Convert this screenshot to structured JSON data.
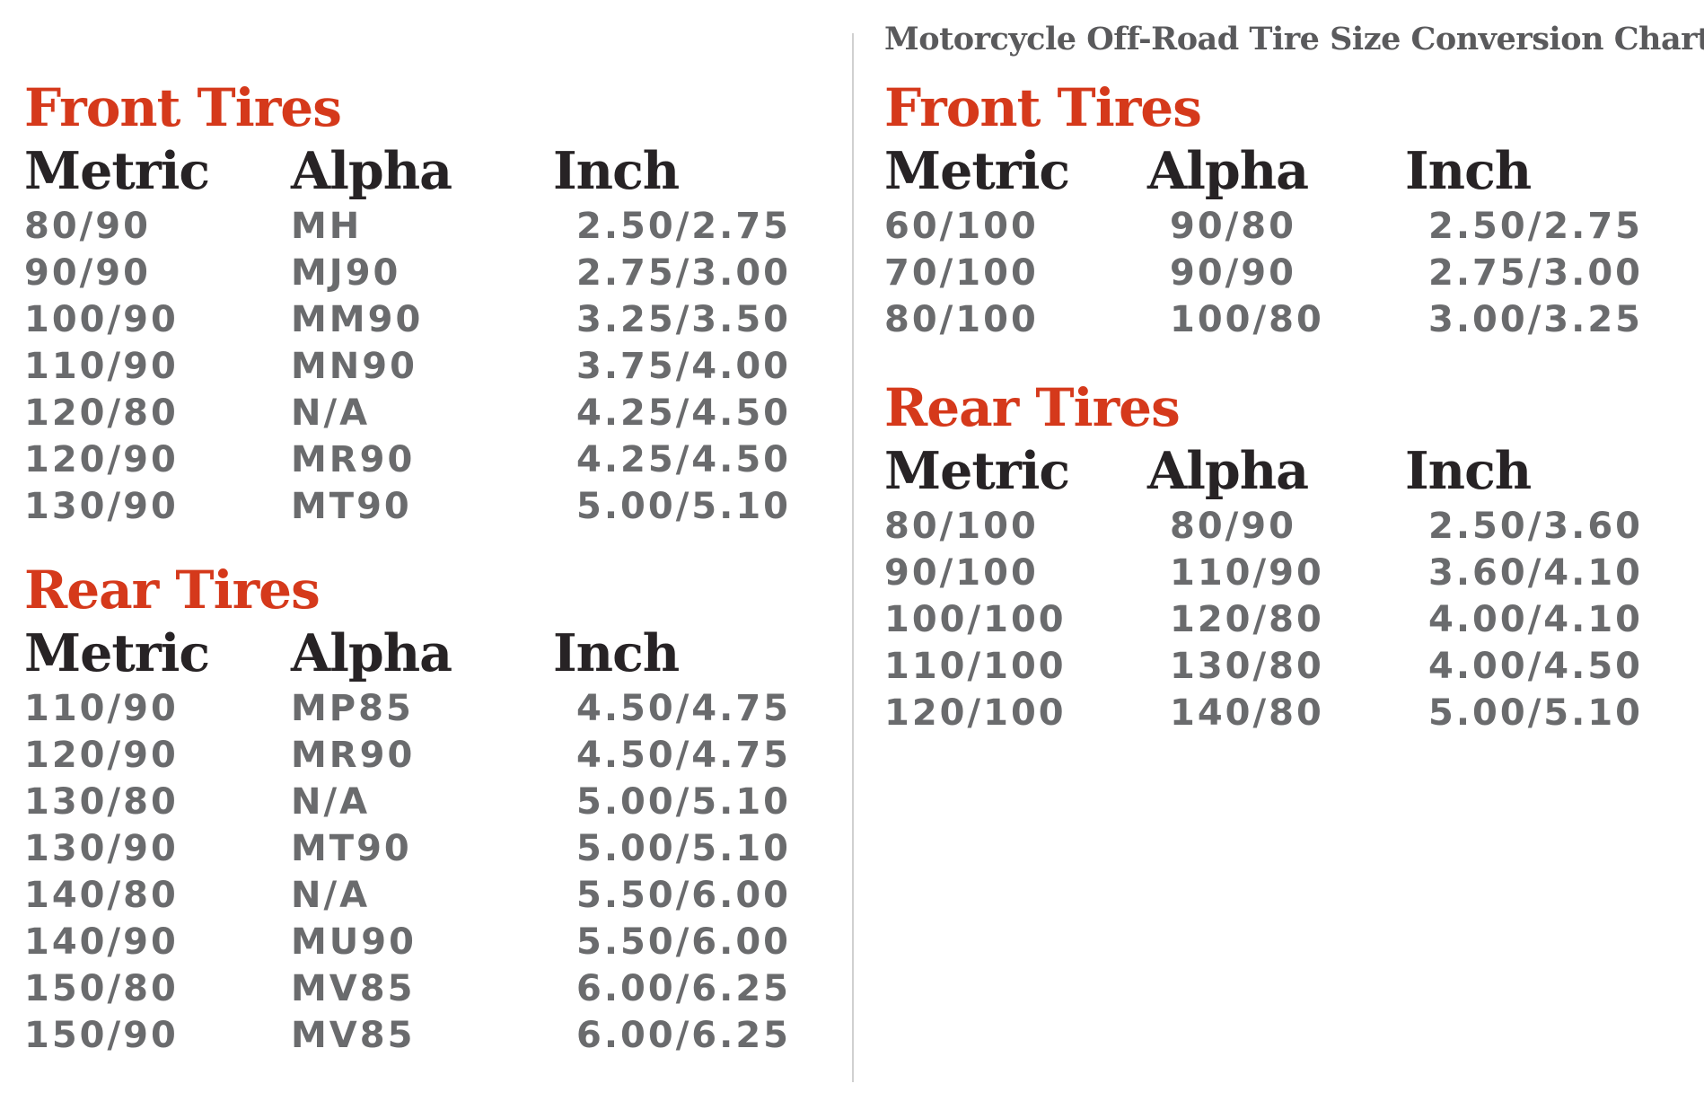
{
  "colors": {
    "heading_red": "#d5391b",
    "header_text": "#272325",
    "data_text": "#6a6b6d",
    "title_text": "#5a5a5c",
    "divider": "#d0d0d0",
    "background": "#ffffff"
  },
  "chart_data": {
    "type": "table",
    "right_panel_title": "Motorcycle Off-Road Tire Size Conversion Chart",
    "tables": [
      {
        "panel": "left",
        "heading": "Front Tires",
        "columns": [
          "Metric",
          "Alpha",
          "Inch"
        ],
        "rows": [
          [
            "80/90",
            "MH",
            "2.50/2.75"
          ],
          [
            "90/90",
            "MJ90",
            "2.75/3.00"
          ],
          [
            "100/90",
            "MM90",
            "3.25/3.50"
          ],
          [
            "110/90",
            "MN90",
            "3.75/4.00"
          ],
          [
            "120/80",
            "N/A",
            "4.25/4.50"
          ],
          [
            "120/90",
            "MR90",
            "4.25/4.50"
          ],
          [
            "130/90",
            "MT90",
            "5.00/5.10"
          ]
        ]
      },
      {
        "panel": "left",
        "heading": "Rear Tires",
        "columns": [
          "Metric",
          "Alpha",
          "Inch"
        ],
        "rows": [
          [
            "110/90",
            "MP85",
            "4.50/4.75"
          ],
          [
            "120/90",
            "MR90",
            "4.50/4.75"
          ],
          [
            "130/80",
            "N/A",
            "5.00/5.10"
          ],
          [
            "130/90",
            "MT90",
            "5.00/5.10"
          ],
          [
            "140/80",
            "N/A",
            "5.50/6.00"
          ],
          [
            "140/90",
            "MU90",
            "5.50/6.00"
          ],
          [
            "150/80",
            "MV85",
            "6.00/6.25"
          ],
          [
            "150/90",
            "MV85",
            "6.00/6.25"
          ]
        ]
      },
      {
        "panel": "right",
        "heading": "Front Tires",
        "columns": [
          "Metric",
          "Alpha",
          "Inch"
        ],
        "rows": [
          [
            "60/100",
            "90/80",
            "2.50/2.75"
          ],
          [
            "70/100",
            "90/90",
            "2.75/3.00"
          ],
          [
            "80/100",
            "100/80",
            "3.00/3.25"
          ]
        ]
      },
      {
        "panel": "right",
        "heading": "Rear Tires",
        "columns": [
          "Metric",
          "Alpha",
          "Inch"
        ],
        "rows": [
          [
            "80/100",
            "80/90",
            "2.50/3.60"
          ],
          [
            "90/100",
            "110/90",
            "3.60/4.10"
          ],
          [
            "100/100",
            "120/80",
            "4.00/4.10"
          ],
          [
            "110/100",
            "130/80",
            "4.00/4.50"
          ],
          [
            "120/100",
            "140/80",
            "5.00/5.10"
          ]
        ]
      }
    ]
  }
}
